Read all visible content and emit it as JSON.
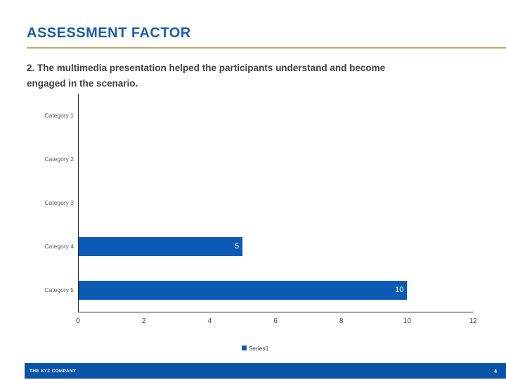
{
  "slide": {
    "title": "ASSESSMENT FACTOR",
    "subtitle_line1": "2. The multimedia presentation helped the participants understand and become",
    "subtitle_line2": "engaged in the scenario.",
    "footer": {
      "company": "THE XYZ COMPANY",
      "page_number": "4"
    }
  },
  "colors": {
    "title_blue": "#1B5CA8",
    "underline_gold": "#C9A35B",
    "subtitle_gray": "#3F3F3F",
    "bar_blue": "#0B5BB4",
    "footer_blue": "#0853A6",
    "axis_gray": "#404040",
    "category_gray": "#595959"
  },
  "chart_data": {
    "type": "bar",
    "orientation": "horizontal",
    "title": "",
    "xlabel": "",
    "ylabel": "",
    "categories": [
      "Category 1",
      "Category 2",
      "Category 3",
      "Category 4",
      "Category 5"
    ],
    "series": [
      {
        "name": "Series1",
        "values": [
          0,
          0,
          0,
          5,
          10
        ]
      }
    ],
    "data_labels": [
      "",
      "",
      "",
      "5",
      "10"
    ],
    "x_ticks": [
      0,
      2,
      4,
      6,
      8,
      10,
      12
    ],
    "xlim": [
      0,
      12
    ],
    "grid": false,
    "legend_position": "bottom"
  }
}
